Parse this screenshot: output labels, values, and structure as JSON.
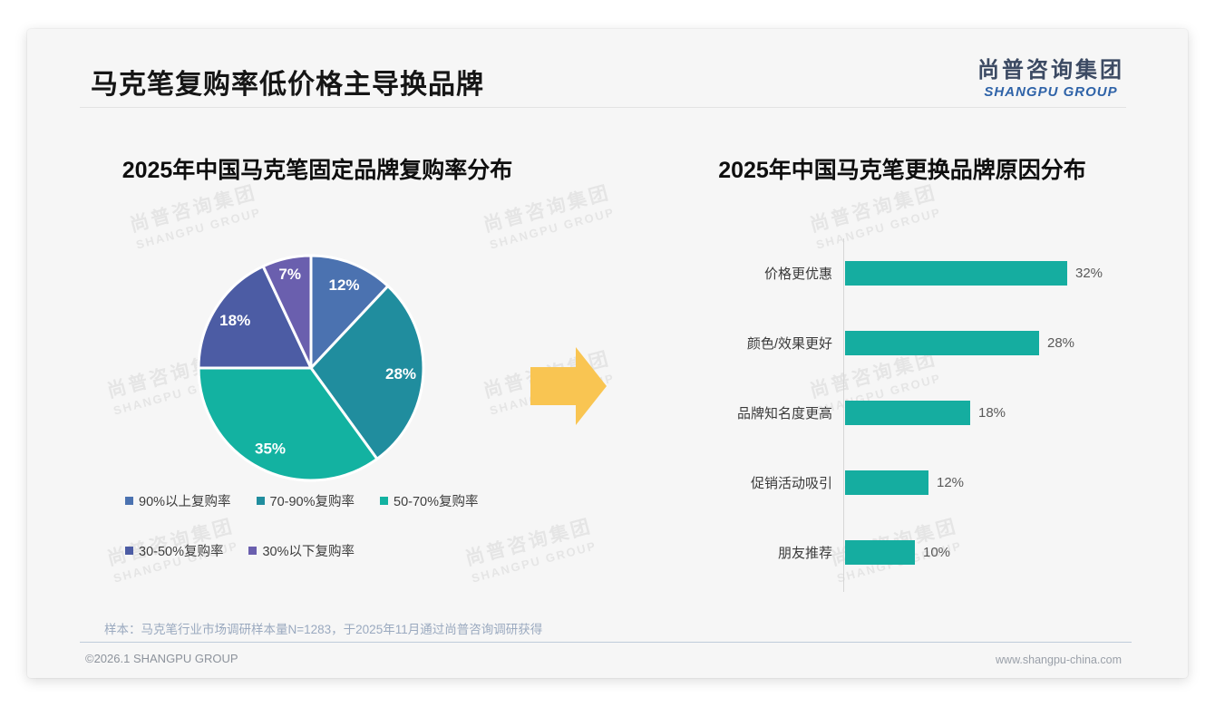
{
  "page": {
    "title": "马克笔复购率低价格主导换品牌",
    "logo": {
      "cn": "尚普咨询集团",
      "en": "SHANGPU GROUP"
    },
    "watermark": {
      "cn": "尚普咨询集团",
      "en": "SHANGPU GROUP"
    },
    "footer": {
      "sample_note": "样本：马克笔行业市场调研样本量N=1283，于2025年11月通过尚普咨询调研获得",
      "copyright": "©2026.1 SHANGPU GROUP",
      "website": "www.shangpu-china.com"
    }
  },
  "arrow": {
    "color": "#f9c552"
  },
  "chart_data": [
    {
      "type": "pie",
      "title": "2025年中国马克笔固定品牌复购率分布",
      "categories": [
        "90%以上复购率",
        "70-90%复购率",
        "50-70%复购率",
        "30-50%复购率",
        "30%以下复购率"
      ],
      "values": [
        12,
        28,
        35,
        18,
        7
      ],
      "labels": [
        "12%",
        "28%",
        "35%",
        "18%",
        "7%"
      ],
      "colors": [
        "#4b72b0",
        "#208d9e",
        "#13b2a1",
        "#4c5ca4",
        "#6a5fae"
      ],
      "start_angle_deg_from_top": 0,
      "direction": "clockwise",
      "legend_position": "bottom",
      "slice_label_color": "#ffffff"
    },
    {
      "type": "bar",
      "title": "2025年中国马克笔更换品牌原因分布",
      "orientation": "horizontal",
      "categories": [
        "价格更优惠",
        "颜色/效果更好",
        "品牌知名度更高",
        "促销活动吸引",
        "朋友推荐"
      ],
      "values": [
        32,
        28,
        18,
        12,
        10
      ],
      "value_labels": [
        "32%",
        "28%",
        "18%",
        "12%",
        "10%"
      ],
      "bar_color": "#15ada0",
      "xlim": [
        0,
        34
      ],
      "grid": false,
      "axis_line": "left"
    }
  ]
}
